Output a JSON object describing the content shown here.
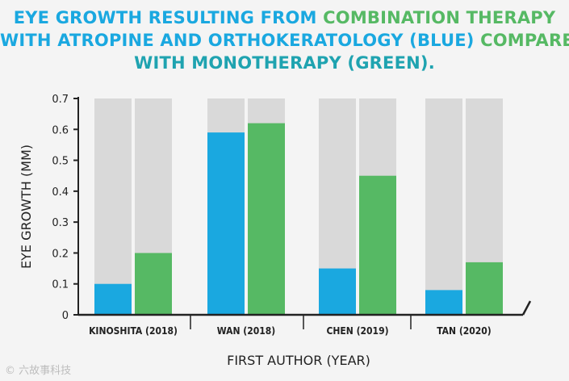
{
  "title": {
    "line1_part1": "EYE GROWTH RESULTING FROM ",
    "line1_part2": "COMBINATION THERAPY",
    "line2_part1": "WITH ATROPINE AND ORTHOKERATOLOGY (BLUE) ",
    "line2_part2": "COMPARED",
    "line3": "WITH MONOTHERAPY (GREEN)."
  },
  "colors": {
    "blue": "#1aa8e0",
    "green": "#56b964",
    "background_bar": "#d9d9d9",
    "axis": "#222222"
  },
  "watermark": "© 六故事科技",
  "chart_data": {
    "type": "bar",
    "title": "EYE GROWTH RESULTING FROM COMBINATION THERAPY WITH ATROPINE AND ORTHOKERATOLOGY (BLUE) COMPARED WITH MONOTHERAPY (GREEN).",
    "xlabel": "FIRST AUTHOR (YEAR)",
    "ylabel": "EYE GROWTH (MM)",
    "ylim": [
      0,
      0.7
    ],
    "yticks": [
      "0",
      "0.1",
      "0.2",
      "0.3",
      "0.4",
      "0.5",
      "0.6",
      "0.7"
    ],
    "categories": [
      "KINOSHITA (2018)",
      "WAN (2018)",
      "CHEN (2019)",
      "TAN (2020)"
    ],
    "series": [
      {
        "name": "Combination therapy (atropine + orthokeratology)",
        "color": "blue",
        "values": [
          0.1,
          0.59,
          0.15,
          0.08
        ]
      },
      {
        "name": "Monotherapy",
        "color": "green",
        "values": [
          0.2,
          0.62,
          0.45,
          0.17
        ]
      }
    ],
    "grid": false,
    "legend": "none"
  }
}
